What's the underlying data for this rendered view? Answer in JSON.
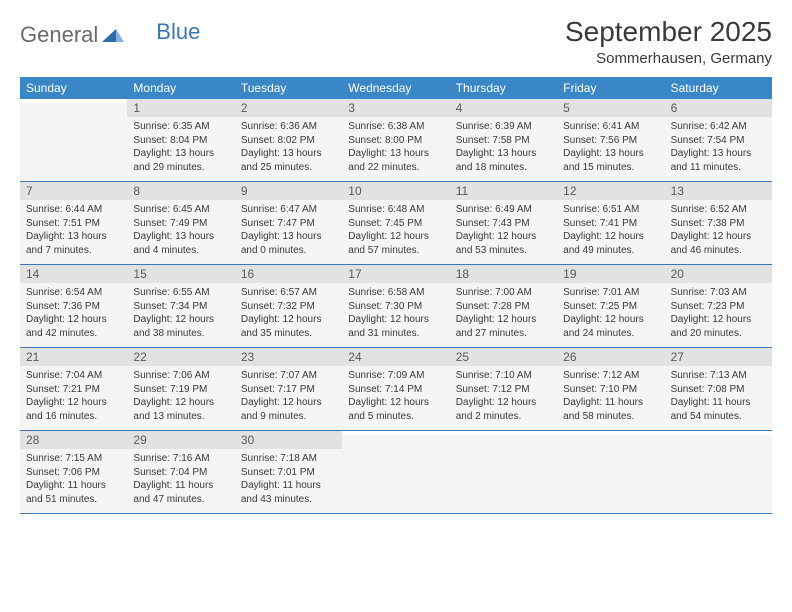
{
  "logo": {
    "general": "General",
    "blue": "Blue"
  },
  "title": "September 2025",
  "location": "Sommerhausen, Germany",
  "dayNames": [
    "Sunday",
    "Monday",
    "Tuesday",
    "Wednesday",
    "Thursday",
    "Friday",
    "Saturday"
  ],
  "colors": {
    "headerBg": "#3a87c7",
    "headerText": "#ffffff",
    "dayNumBg": "#e2e2e2",
    "dayBodyBg": "#f5f5f5",
    "ruleColor": "#3a78b5",
    "textColor": "#3a3a3a",
    "logoGray": "#6a6a6a",
    "logoBlue": "#3a78b5"
  },
  "firstDayOffset": 1,
  "days": [
    {
      "n": 1,
      "sunrise": "6:35 AM",
      "sunset": "8:04 PM",
      "daylight": "13 hours and 29 minutes."
    },
    {
      "n": 2,
      "sunrise": "6:36 AM",
      "sunset": "8:02 PM",
      "daylight": "13 hours and 25 minutes."
    },
    {
      "n": 3,
      "sunrise": "6:38 AM",
      "sunset": "8:00 PM",
      "daylight": "13 hours and 22 minutes."
    },
    {
      "n": 4,
      "sunrise": "6:39 AM",
      "sunset": "7:58 PM",
      "daylight": "13 hours and 18 minutes."
    },
    {
      "n": 5,
      "sunrise": "6:41 AM",
      "sunset": "7:56 PM",
      "daylight": "13 hours and 15 minutes."
    },
    {
      "n": 6,
      "sunrise": "6:42 AM",
      "sunset": "7:54 PM",
      "daylight": "13 hours and 11 minutes."
    },
    {
      "n": 7,
      "sunrise": "6:44 AM",
      "sunset": "7:51 PM",
      "daylight": "13 hours and 7 minutes."
    },
    {
      "n": 8,
      "sunrise": "6:45 AM",
      "sunset": "7:49 PM",
      "daylight": "13 hours and 4 minutes."
    },
    {
      "n": 9,
      "sunrise": "6:47 AM",
      "sunset": "7:47 PM",
      "daylight": "13 hours and 0 minutes."
    },
    {
      "n": 10,
      "sunrise": "6:48 AM",
      "sunset": "7:45 PM",
      "daylight": "12 hours and 57 minutes."
    },
    {
      "n": 11,
      "sunrise": "6:49 AM",
      "sunset": "7:43 PM",
      "daylight": "12 hours and 53 minutes."
    },
    {
      "n": 12,
      "sunrise": "6:51 AM",
      "sunset": "7:41 PM",
      "daylight": "12 hours and 49 minutes."
    },
    {
      "n": 13,
      "sunrise": "6:52 AM",
      "sunset": "7:38 PM",
      "daylight": "12 hours and 46 minutes."
    },
    {
      "n": 14,
      "sunrise": "6:54 AM",
      "sunset": "7:36 PM",
      "daylight": "12 hours and 42 minutes."
    },
    {
      "n": 15,
      "sunrise": "6:55 AM",
      "sunset": "7:34 PM",
      "daylight": "12 hours and 38 minutes."
    },
    {
      "n": 16,
      "sunrise": "6:57 AM",
      "sunset": "7:32 PM",
      "daylight": "12 hours and 35 minutes."
    },
    {
      "n": 17,
      "sunrise": "6:58 AM",
      "sunset": "7:30 PM",
      "daylight": "12 hours and 31 minutes."
    },
    {
      "n": 18,
      "sunrise": "7:00 AM",
      "sunset": "7:28 PM",
      "daylight": "12 hours and 27 minutes."
    },
    {
      "n": 19,
      "sunrise": "7:01 AM",
      "sunset": "7:25 PM",
      "daylight": "12 hours and 24 minutes."
    },
    {
      "n": 20,
      "sunrise": "7:03 AM",
      "sunset": "7:23 PM",
      "daylight": "12 hours and 20 minutes."
    },
    {
      "n": 21,
      "sunrise": "7:04 AM",
      "sunset": "7:21 PM",
      "daylight": "12 hours and 16 minutes."
    },
    {
      "n": 22,
      "sunrise": "7:06 AM",
      "sunset": "7:19 PM",
      "daylight": "12 hours and 13 minutes."
    },
    {
      "n": 23,
      "sunrise": "7:07 AM",
      "sunset": "7:17 PM",
      "daylight": "12 hours and 9 minutes."
    },
    {
      "n": 24,
      "sunrise": "7:09 AM",
      "sunset": "7:14 PM",
      "daylight": "12 hours and 5 minutes."
    },
    {
      "n": 25,
      "sunrise": "7:10 AM",
      "sunset": "7:12 PM",
      "daylight": "12 hours and 2 minutes."
    },
    {
      "n": 26,
      "sunrise": "7:12 AM",
      "sunset": "7:10 PM",
      "daylight": "11 hours and 58 minutes."
    },
    {
      "n": 27,
      "sunrise": "7:13 AM",
      "sunset": "7:08 PM",
      "daylight": "11 hours and 54 minutes."
    },
    {
      "n": 28,
      "sunrise": "7:15 AM",
      "sunset": "7:06 PM",
      "daylight": "11 hours and 51 minutes."
    },
    {
      "n": 29,
      "sunrise": "7:16 AM",
      "sunset": "7:04 PM",
      "daylight": "11 hours and 47 minutes."
    },
    {
      "n": 30,
      "sunrise": "7:18 AM",
      "sunset": "7:01 PM",
      "daylight": "11 hours and 43 minutes."
    }
  ],
  "labels": {
    "sunrise": "Sunrise:",
    "sunset": "Sunset:",
    "daylight": "Daylight:"
  }
}
